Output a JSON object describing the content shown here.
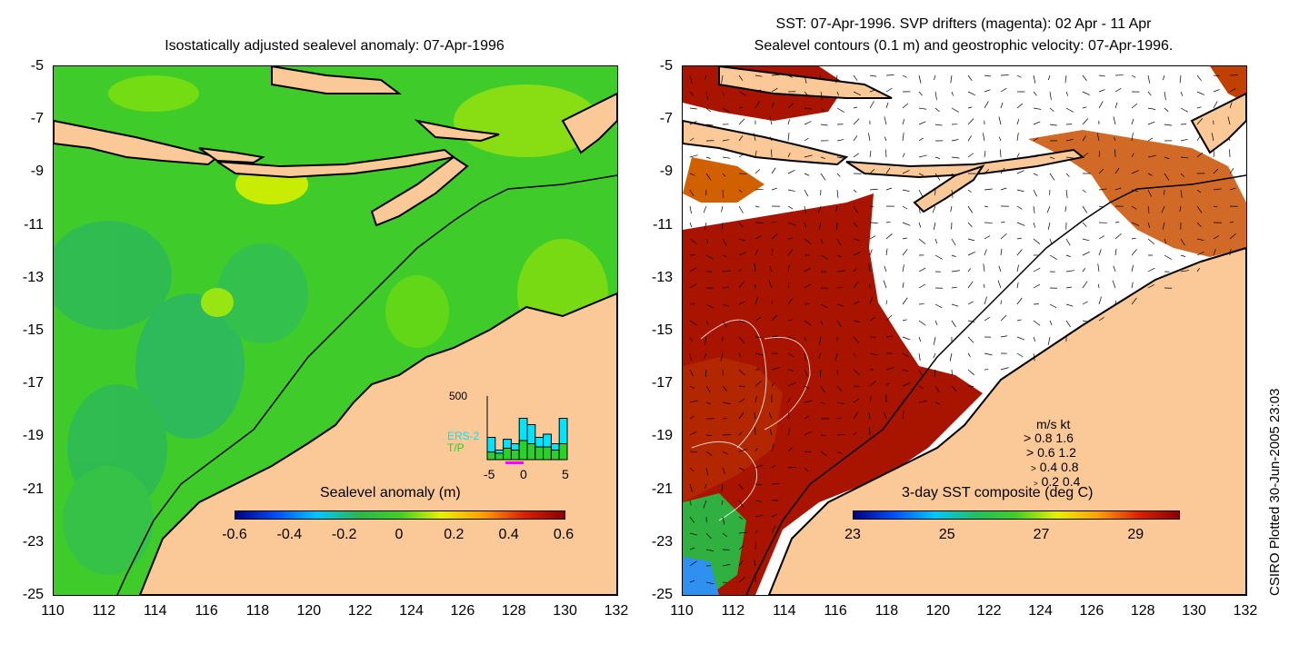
{
  "left_panel": {
    "title": "Isostatically adjusted sealevel anomaly: 07-Apr-1996",
    "colorbar_title": "Sealevel anomaly (m)",
    "colorbar_ticks": [
      "-0.6",
      "-0.4",
      "-0.2",
      "0",
      "0.2",
      "0.4",
      "0.6"
    ],
    "colorbar_colors": [
      "#000080",
      "#0050ff",
      "#00c8ff",
      "#28b84a",
      "#40d020",
      "#e8f000",
      "#ffa000",
      "#e02000",
      "#8b0000"
    ],
    "histogram": {
      "y_max_label": "500",
      "x_labels": [
        "-5",
        "0",
        "5"
      ],
      "series": [
        "ERS-2",
        "T/P"
      ],
      "series_colors": [
        "#00e5ff",
        "#2ad12a"
      ],
      "ers2": [
        0.35,
        0.15,
        0.32,
        0.25,
        0.65,
        0.55,
        0.35,
        0.4,
        0.25,
        0.65
      ],
      "tp": [
        0.12,
        0.1,
        0.18,
        0.15,
        0.3,
        0.25,
        0.2,
        0.2,
        0.15,
        0.25
      ]
    }
  },
  "right_panel": {
    "title_line1": "SST: 07-Apr-1996. SVP drifters (magenta): 02 Apr - 11 Apr",
    "title_line2": "Sealevel contours (0.1 m) and geostrophic velocity: 07-Apr-1996.",
    "colorbar_title": "3-day SST composite (deg C)",
    "colorbar_ticks": [
      "23",
      "25",
      "27",
      "29"
    ],
    "colorbar_colors": [
      "#000080",
      "#0050ff",
      "#00c8ff",
      "#20c060",
      "#40d020",
      "#e8f000",
      "#ffa000",
      "#e02000",
      "#8b0000"
    ],
    "velocity_legend": {
      "header": "m/s  kt",
      "rows": [
        "0.8  1.6",
        "0.6  1.2",
        "0.4  0.8",
        "0.2  0.4"
      ]
    }
  },
  "axes": {
    "y_labels": [
      "-5",
      "-7",
      "-9",
      "-11",
      "-13",
      "-15",
      "-17",
      "-19",
      "-21",
      "-23",
      "-25"
    ],
    "x_labels": [
      "110",
      "112",
      "114",
      "116",
      "118",
      "120",
      "122",
      "124",
      "126",
      "128",
      "130",
      "132"
    ]
  },
  "colors": {
    "land": "#fbc898",
    "sea_anomaly": "#40d020",
    "sst_warm": "#a81400",
    "sst_mid": "#c04000",
    "no_data": "#ffffff"
  },
  "credit": "CSIRO Plotted 30-Jun-2005 23:03"
}
